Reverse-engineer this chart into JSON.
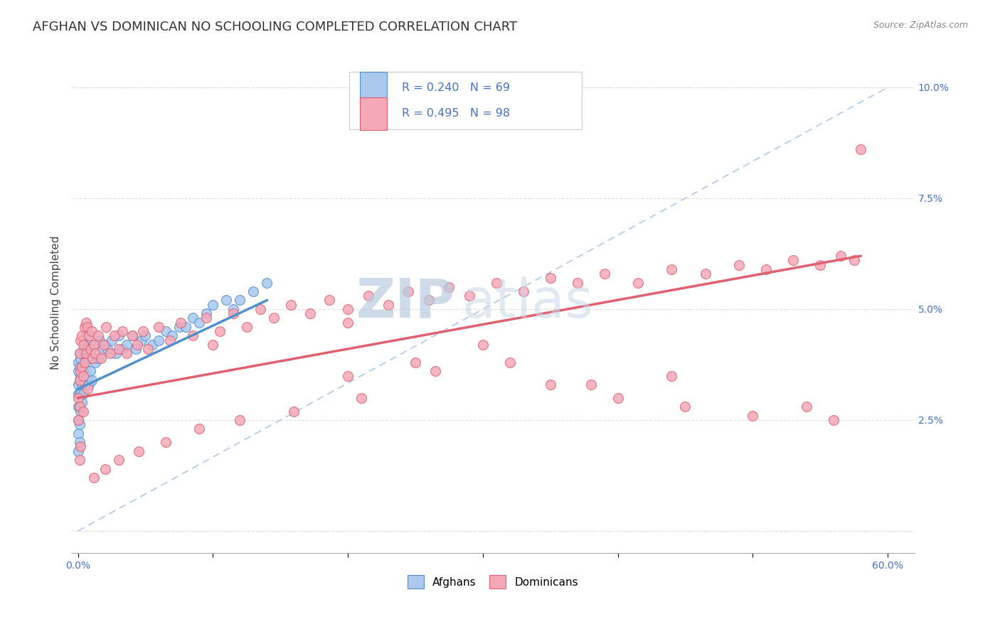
{
  "title": "AFGHAN VS DOMINICAN NO SCHOOLING COMPLETED CORRELATION CHART",
  "source_text": "Source: ZipAtlas.com",
  "ylabel": "No Schooling Completed",
  "xlim": [
    -0.005,
    0.62
  ],
  "ylim": [
    -0.005,
    0.108
  ],
  "afghan_color": "#aac8f0",
  "dominican_color": "#f4a8b8",
  "afghan_line_color": "#5090cc",
  "dominican_line_color": "#e06070",
  "ref_line_color": "#b0c8e8",
  "background_color": "#ffffff",
  "watermark_zip_color": "#b8cce0",
  "watermark_atlas_color": "#c8d8e8",
  "title_fontsize": 13,
  "axis_label_fontsize": 11,
  "tick_fontsize": 10,
  "afghans_x": [
    0.0,
    0.0,
    0.0,
    0.0,
    0.0,
    0.0,
    0.0,
    0.0,
    0.001,
    0.001,
    0.001,
    0.001,
    0.001,
    0.001,
    0.001,
    0.002,
    0.002,
    0.002,
    0.002,
    0.003,
    0.003,
    0.003,
    0.004,
    0.004,
    0.004,
    0.005,
    0.005,
    0.005,
    0.006,
    0.006,
    0.007,
    0.007,
    0.008,
    0.008,
    0.009,
    0.01,
    0.01,
    0.011,
    0.012,
    0.013,
    0.015,
    0.016,
    0.018,
    0.02,
    0.022,
    0.025,
    0.028,
    0.03,
    0.033,
    0.036,
    0.04,
    0.043,
    0.047,
    0.05,
    0.055,
    0.06,
    0.065,
    0.07,
    0.075,
    0.08,
    0.085,
    0.09,
    0.095,
    0.1,
    0.11,
    0.115,
    0.12,
    0.13,
    0.14
  ],
  "afghans_y": [
    0.038,
    0.036,
    0.033,
    0.031,
    0.028,
    0.025,
    0.022,
    0.018,
    0.04,
    0.037,
    0.034,
    0.031,
    0.028,
    0.024,
    0.02,
    0.039,
    0.035,
    0.031,
    0.027,
    0.037,
    0.033,
    0.029,
    0.04,
    0.036,
    0.031,
    0.042,
    0.037,
    0.033,
    0.044,
    0.039,
    0.041,
    0.035,
    0.039,
    0.033,
    0.036,
    0.041,
    0.034,
    0.039,
    0.042,
    0.038,
    0.039,
    0.043,
    0.041,
    0.042,
    0.041,
    0.043,
    0.04,
    0.044,
    0.041,
    0.042,
    0.044,
    0.041,
    0.043,
    0.044,
    0.042,
    0.043,
    0.045,
    0.044,
    0.046,
    0.046,
    0.048,
    0.047,
    0.049,
    0.051,
    0.052,
    0.05,
    0.052,
    0.054,
    0.056
  ],
  "dominicans_x": [
    0.0,
    0.0,
    0.001,
    0.001,
    0.001,
    0.002,
    0.002,
    0.003,
    0.003,
    0.004,
    0.004,
    0.005,
    0.005,
    0.006,
    0.006,
    0.007,
    0.008,
    0.009,
    0.01,
    0.011,
    0.012,
    0.013,
    0.015,
    0.017,
    0.019,
    0.021,
    0.024,
    0.027,
    0.03,
    0.033,
    0.036,
    0.04,
    0.044,
    0.048,
    0.052,
    0.06,
    0.068,
    0.076,
    0.085,
    0.095,
    0.105,
    0.115,
    0.125,
    0.135,
    0.145,
    0.158,
    0.172,
    0.186,
    0.2,
    0.215,
    0.23,
    0.245,
    0.26,
    0.275,
    0.29,
    0.31,
    0.33,
    0.35,
    0.37,
    0.39,
    0.415,
    0.44,
    0.465,
    0.49,
    0.51,
    0.53,
    0.55,
    0.565,
    0.575,
    0.58,
    0.2,
    0.25,
    0.3,
    0.35,
    0.4,
    0.45,
    0.5,
    0.54,
    0.56,
    0.44,
    0.38,
    0.32,
    0.265,
    0.21,
    0.16,
    0.12,
    0.09,
    0.065,
    0.045,
    0.03,
    0.02,
    0.012,
    0.007,
    0.004,
    0.002,
    0.001,
    0.2,
    0.1
  ],
  "dominicans_y": [
    0.03,
    0.025,
    0.04,
    0.034,
    0.028,
    0.043,
    0.036,
    0.044,
    0.037,
    0.042,
    0.035,
    0.046,
    0.038,
    0.047,
    0.04,
    0.046,
    0.044,
    0.041,
    0.045,
    0.039,
    0.042,
    0.04,
    0.044,
    0.039,
    0.042,
    0.046,
    0.04,
    0.044,
    0.041,
    0.045,
    0.04,
    0.044,
    0.042,
    0.045,
    0.041,
    0.046,
    0.043,
    0.047,
    0.044,
    0.048,
    0.045,
    0.049,
    0.046,
    0.05,
    0.048,
    0.051,
    0.049,
    0.052,
    0.05,
    0.053,
    0.051,
    0.054,
    0.052,
    0.055,
    0.053,
    0.056,
    0.054,
    0.057,
    0.056,
    0.058,
    0.056,
    0.059,
    0.058,
    0.06,
    0.059,
    0.061,
    0.06,
    0.062,
    0.061,
    0.086,
    0.035,
    0.038,
    0.042,
    0.033,
    0.03,
    0.028,
    0.026,
    0.028,
    0.025,
    0.035,
    0.033,
    0.038,
    0.036,
    0.03,
    0.027,
    0.025,
    0.023,
    0.02,
    0.018,
    0.016,
    0.014,
    0.012,
    0.032,
    0.027,
    0.019,
    0.016,
    0.047,
    0.042
  ]
}
